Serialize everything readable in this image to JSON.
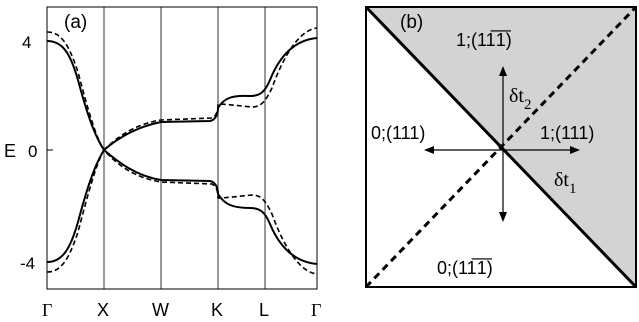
{
  "panel_a": {
    "label": "(a)",
    "y_axis_label": "E",
    "y_ticks": [
      "4",
      "0",
      "-4"
    ],
    "x_ticks": [
      "Γ",
      "X",
      "W",
      "K",
      "L",
      "Γ"
    ]
  },
  "panel_b": {
    "label": "(b)",
    "regions": {
      "top": "1;(11̅1̅)",
      "left": "0;(111)",
      "right": "1;(111)",
      "bottom": "0;(11̅1̅)"
    },
    "axis_labels": {
      "dt2": "δt",
      "dt2_sub": "2",
      "dt1": "δt",
      "dt1_sub": "1"
    },
    "shaded_color": "#d3d3d3"
  },
  "chart_data": {
    "type": "line",
    "x": [
      "Γ",
      "X",
      "W",
      "K",
      "L",
      "Γ"
    ],
    "ylabel": "E",
    "ylim": [
      -4.6,
      4.6
    ],
    "grid": "vertical lines at high-symmetry points",
    "series": [
      {
        "style": "solid",
        "upper": [
          4.0,
          0.0,
          1.0,
          1.1,
          1.7,
          4.0
        ],
        "lower": [
          -4.0,
          0.0,
          -1.0,
          -1.1,
          -1.7,
          -4.0
        ]
      },
      {
        "style": "dashed",
        "upper": [
          4.3,
          0.0,
          1.0,
          1.2,
          1.5,
          4.3
        ],
        "lower": [
          -4.3,
          0.0,
          -1.0,
          -1.2,
          -1.5,
          -4.3
        ]
      }
    ]
  }
}
